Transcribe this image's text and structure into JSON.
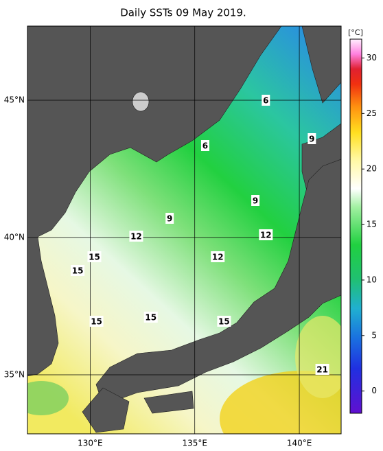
{
  "title": "Daily SSTs 09 May 2019.",
  "map": {
    "lon_range": [
      127,
      142
    ],
    "lat_range": [
      32.85,
      47.7
    ],
    "lon_ticks": [
      {
        "value": 130,
        "label": "130°E"
      },
      {
        "value": 135,
        "label": "135°E"
      },
      {
        "value": 140,
        "label": "140°E"
      }
    ],
    "lat_ticks": [
      {
        "value": 35,
        "label": "35°N"
      },
      {
        "value": 40,
        "label": "40°N"
      },
      {
        "value": 45,
        "label": "45°N"
      }
    ],
    "contour_labels": [
      {
        "text": "6",
        "lon": 138.4,
        "lat": 45.0
      },
      {
        "text": "6",
        "lon": 135.5,
        "lat": 43.35
      },
      {
        "text": "9",
        "lon": 140.6,
        "lat": 43.6
      },
      {
        "text": "9",
        "lon": 137.9,
        "lat": 41.35
      },
      {
        "text": "9",
        "lon": 133.8,
        "lat": 40.7
      },
      {
        "text": "12",
        "lon": 132.2,
        "lat": 40.05
      },
      {
        "text": "12",
        "lon": 138.4,
        "lat": 40.1
      },
      {
        "text": "12",
        "lon": 136.1,
        "lat": 39.3
      },
      {
        "text": "15",
        "lon": 130.2,
        "lat": 39.3
      },
      {
        "text": "15",
        "lon": 129.4,
        "lat": 38.8
      },
      {
        "text": "15",
        "lon": 130.3,
        "lat": 36.95
      },
      {
        "text": "15",
        "lon": 132.9,
        "lat": 37.1
      },
      {
        "text": "15",
        "lon": 136.4,
        "lat": 36.95
      },
      {
        "text": "21",
        "lon": 141.1,
        "lat": 35.2
      }
    ]
  },
  "colorbar": {
    "unit": "[°C]",
    "range": [
      -2,
      31.7
    ],
    "ticks": [
      0,
      5,
      10,
      15,
      20,
      25,
      30
    ]
  }
}
